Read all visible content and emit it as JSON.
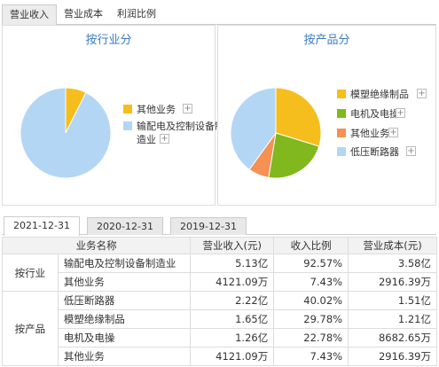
{
  "top_tabs": [
    "营业收入",
    "营业成本",
    "利润比例"
  ],
  "industry_panel": {
    "title": "按行业分",
    "legend": [
      {
        "label": "其他业务",
        "color": "#f5be1d"
      },
      {
        "label_line1": "输配电及控制设备制",
        "label_line2": "造业",
        "color": "#b3d6f5"
      }
    ]
  },
  "product_panel": {
    "title": "按产品分",
    "legend": [
      {
        "label": "模塑绝缘制品",
        "color": "#f5be1d"
      },
      {
        "label": "电机及电操",
        "color": "#80b81e"
      },
      {
        "label": "其他业务",
        "color": "#f59152"
      },
      {
        "label": "低压断路器",
        "color": "#b3d6f5"
      }
    ]
  },
  "plus_symbol": "+",
  "date_tabs": [
    "2021-12-31",
    "2020-12-31",
    "2019-12-31"
  ],
  "table": {
    "headers": [
      "业务名称",
      "营业收入(元)",
      "收入比例",
      "营业成本(元)"
    ],
    "groups": [
      {
        "name": "按行业",
        "rows": [
          {
            "name": "输配电及控制设备制造业",
            "revenue": "5.13亿",
            "ratio": "92.57%",
            "cost": "3.58亿"
          },
          {
            "name": "其他业务",
            "revenue": "4121.09万",
            "ratio": "7.43%",
            "cost": "2916.39万"
          }
        ]
      },
      {
        "name": "按产品",
        "rows": [
          {
            "name": "低压断路器",
            "revenue": "2.22亿",
            "ratio": "40.02%",
            "cost": "1.51亿"
          },
          {
            "name": "模塑绝缘制品",
            "revenue": "1.65亿",
            "ratio": "29.78%",
            "cost": "1.21亿"
          },
          {
            "name": "电机及电操",
            "revenue": "1.26亿",
            "ratio": "22.78%",
            "cost": "8682.65万"
          },
          {
            "name": "其他业务",
            "revenue": "4121.09万",
            "ratio": "7.43%",
            "cost": "2916.39万"
          }
        ]
      }
    ]
  },
  "chart_data": [
    {
      "type": "pie",
      "title": "按行业分",
      "labels": [
        "其他业务",
        "输配电及控制设备制造业"
      ],
      "values": [
        7.43,
        92.57
      ],
      "colors": [
        "#f5be1d",
        "#b3d6f5"
      ]
    },
    {
      "type": "pie",
      "title": "按产品分",
      "labels": [
        "模塑绝缘制品",
        "电机及电操",
        "其他业务",
        "低压断路器"
      ],
      "values": [
        29.78,
        22.78,
        7.43,
        40.02
      ],
      "colors": [
        "#f5be1d",
        "#80b81e",
        "#f59152",
        "#b3d6f5"
      ]
    }
  ]
}
